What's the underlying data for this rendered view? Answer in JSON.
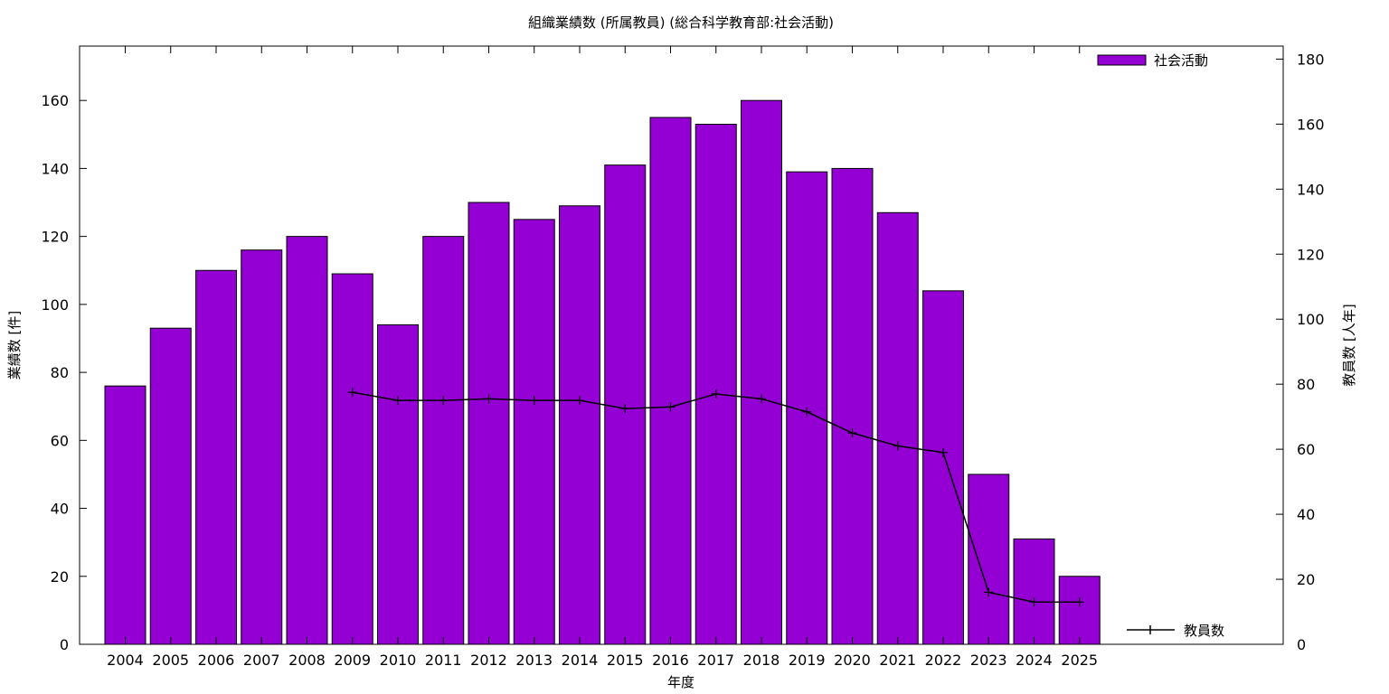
{
  "chart_data": {
    "type": "bar",
    "title": "組織業績数 (所属教員) (総合科学教育部:社会活動)",
    "xlabel": "年度",
    "ylabel": "業績数 [件]",
    "y2label": "教員数 [人年]",
    "ylim": [
      0,
      176
    ],
    "y2lim": [
      0,
      184
    ],
    "yticks": [
      0,
      20,
      40,
      60,
      80,
      100,
      120,
      140,
      160
    ],
    "y2ticks": [
      0,
      20,
      40,
      60,
      80,
      100,
      120,
      140,
      160,
      180
    ],
    "categories": [
      "2004",
      "2005",
      "2006",
      "2007",
      "2008",
      "2009",
      "2010",
      "2011",
      "2012",
      "2013",
      "2014",
      "2015",
      "2016",
      "2017",
      "2018",
      "2019",
      "2020",
      "2021",
      "2022",
      "2023",
      "2024",
      "2025"
    ],
    "series": [
      {
        "name": "社会活動",
        "type": "bar",
        "axis": "left",
        "color": "#9400D3",
        "values": [
          76,
          93,
          110,
          116,
          120,
          109,
          94,
          120,
          130,
          125,
          129,
          141,
          155,
          153,
          160,
          139,
          140,
          127,
          104,
          50,
          31,
          20
        ]
      },
      {
        "name": "教員数",
        "type": "line",
        "axis": "right",
        "color": "#000000",
        "values": [
          null,
          null,
          null,
          null,
          null,
          77.5,
          75,
          75,
          75.5,
          75,
          75,
          72.5,
          73,
          77,
          75.5,
          71.5,
          65,
          61,
          59,
          16,
          13,
          13
        ]
      }
    ],
    "legend": "top-right (bars), bottom-right (line)",
    "grid": false
  }
}
